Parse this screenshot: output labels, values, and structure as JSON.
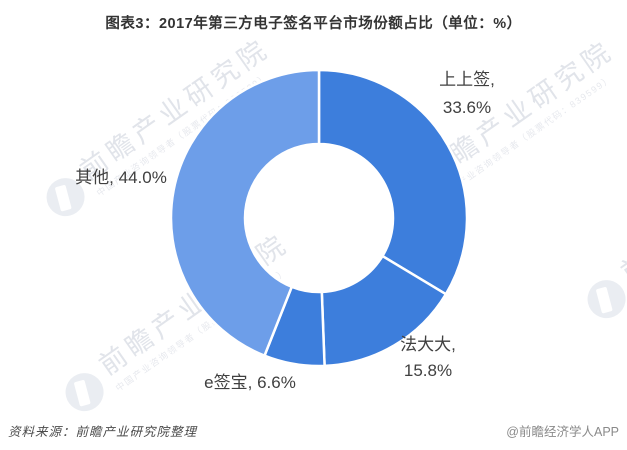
{
  "title": "图表3：2017年第三方电子签名平台市场份额占比（单位：%）",
  "chart_data": {
    "type": "pie",
    "subtype": "donut",
    "title": "图表3：2017年第三方电子签名平台市场份额占比（单位：%）",
    "unit": "%",
    "categories": [
      "上上签",
      "法大大",
      "e签宝",
      "其他"
    ],
    "values": [
      33.6,
      15.8,
      6.6,
      44.0
    ],
    "colors": [
      "#3D7EDC",
      "#3D7EDC",
      "#3D7EDC",
      "#6D9EE9"
    ],
    "start_angle_deg": 0,
    "direction": "clockwise",
    "donut_hole_ratio": 0.5,
    "separator_color": "#FFFFFF",
    "legend": "none",
    "data_labels": "outside"
  },
  "slice_labels": {
    "shangshangqian": [
      "上上签,",
      "33.6%"
    ],
    "fadada": [
      "法大大,",
      "15.8%"
    ],
    "eqianbao": [
      "e签宝, 6.6%"
    ],
    "qita": [
      "其他, 44.0%"
    ]
  },
  "footer": {
    "source": "资料来源：前瞻产业研究院整理",
    "brand": "@前瞻经济学人APP"
  },
  "watermark": {
    "big": "前瞻产业研究院",
    "small": "中国产业咨询领导者（股票代码：839599）"
  }
}
